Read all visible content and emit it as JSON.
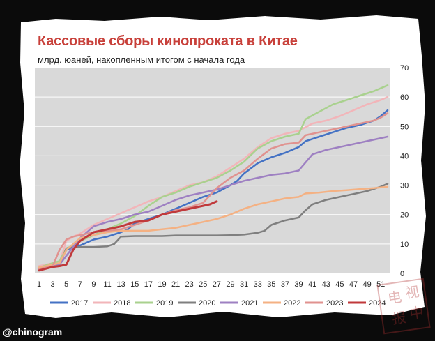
{
  "title": "Кассовые сборы кинопроката в Китае",
  "subtitle": "млрд. юаней, накопленным итогом с начала года",
  "watermark": "@chinogram",
  "seal_text": "电 视 报 中",
  "chart_data": {
    "type": "line",
    "title": "Кассовые сборы кинопроката в Китае",
    "subtitle": "млрд. юаней, накопленным итогом с начала года",
    "xlabel": "",
    "ylabel": "",
    "x_range": [
      1,
      52
    ],
    "ylim": [
      0,
      70
    ],
    "y_ticks": [
      0,
      10,
      20,
      30,
      40,
      50,
      60,
      70
    ],
    "x_ticks": [
      1,
      3,
      5,
      7,
      9,
      11,
      13,
      15,
      17,
      19,
      21,
      23,
      25,
      27,
      29,
      31,
      33,
      35,
      37,
      39,
      41,
      43,
      45,
      47,
      49,
      51
    ],
    "y_axis_side": "right",
    "grid": "horizontal",
    "legend_position": "bottom",
    "series": [
      {
        "name": "2017",
        "color": "#4472c4",
        "points": [
          [
            1,
            1.5
          ],
          [
            3,
            3
          ],
          [
            4,
            3.5
          ],
          [
            5,
            8
          ],
          [
            6,
            9
          ],
          [
            7,
            9.5
          ],
          [
            8,
            10.5
          ],
          [
            9,
            11.5
          ],
          [
            11,
            12.5
          ],
          [
            13,
            14
          ],
          [
            14,
            15
          ],
          [
            15,
            17
          ],
          [
            17,
            18.5
          ],
          [
            19,
            20
          ],
          [
            21,
            22
          ],
          [
            23,
            24
          ],
          [
            25,
            26
          ],
          [
            27,
            27.5
          ],
          [
            29,
            30
          ],
          [
            30,
            31.5
          ],
          [
            31,
            34
          ],
          [
            33,
            37.5
          ],
          [
            35,
            39.5
          ],
          [
            37,
            41
          ],
          [
            39,
            43
          ],
          [
            40,
            45
          ],
          [
            42,
            46.5
          ],
          [
            44,
            48
          ],
          [
            46,
            49.5
          ],
          [
            48,
            50.5
          ],
          [
            50,
            52
          ],
          [
            51,
            53.5
          ],
          [
            52,
            55.5
          ]
        ]
      },
      {
        "name": "2018",
        "color": "#f2b5b9",
        "points": [
          [
            1,
            2.5
          ],
          [
            3,
            3.5
          ],
          [
            4,
            3.8
          ],
          [
            5,
            11
          ],
          [
            6,
            12.5
          ],
          [
            7,
            13.5
          ],
          [
            9,
            16.5
          ],
          [
            11,
            18.5
          ],
          [
            13,
            20.5
          ],
          [
            15,
            22.5
          ],
          [
            17,
            24.5
          ],
          [
            19,
            26
          ],
          [
            21,
            28
          ],
          [
            23,
            30
          ],
          [
            25,
            31
          ],
          [
            27,
            33
          ],
          [
            29,
            36
          ],
          [
            31,
            39
          ],
          [
            33,
            43
          ],
          [
            35,
            46
          ],
          [
            37,
            47.5
          ],
          [
            39,
            48.5
          ],
          [
            41,
            51
          ],
          [
            43,
            52
          ],
          [
            45,
            53.5
          ],
          [
            47,
            55.5
          ],
          [
            49,
            57.5
          ],
          [
            51,
            59
          ],
          [
            52,
            60
          ]
        ]
      },
      {
        "name": "2019",
        "color": "#a9d18e",
        "points": [
          [
            1,
            2
          ],
          [
            3,
            3.5
          ],
          [
            4,
            4.2
          ],
          [
            5,
            8.5
          ],
          [
            6,
            9.5
          ],
          [
            7,
            11
          ],
          [
            9,
            13
          ],
          [
            11,
            15
          ],
          [
            13,
            17
          ],
          [
            15,
            19.5
          ],
          [
            17,
            23
          ],
          [
            19,
            26
          ],
          [
            21,
            27.5
          ],
          [
            23,
            29.5
          ],
          [
            25,
            31
          ],
          [
            27,
            32.5
          ],
          [
            29,
            35
          ],
          [
            31,
            38
          ],
          [
            33,
            42.5
          ],
          [
            35,
            45
          ],
          [
            37,
            46.5
          ],
          [
            39,
            47.5
          ],
          [
            40,
            52.5
          ],
          [
            42,
            55
          ],
          [
            44,
            57.5
          ],
          [
            46,
            59
          ],
          [
            48,
            60.5
          ],
          [
            50,
            62
          ],
          [
            52,
            64
          ]
        ]
      },
      {
        "name": "2020",
        "color": "#7f7f7f",
        "points": [
          [
            1,
            1
          ],
          [
            3,
            2.5
          ],
          [
            4,
            2.8
          ],
          [
            5,
            8.5
          ],
          [
            6,
            9
          ],
          [
            7,
            9
          ],
          [
            9,
            9
          ],
          [
            11,
            9.2
          ],
          [
            12,
            10
          ],
          [
            13,
            12.5
          ],
          [
            15,
            12.7
          ],
          [
            17,
            12.7
          ],
          [
            19,
            12.7
          ],
          [
            21,
            12.9
          ],
          [
            23,
            12.9
          ],
          [
            25,
            12.9
          ],
          [
            27,
            12.9
          ],
          [
            29,
            13
          ],
          [
            31,
            13.2
          ],
          [
            33,
            13.8
          ],
          [
            34,
            14.5
          ],
          [
            35,
            16.5
          ],
          [
            37,
            18
          ],
          [
            39,
            19
          ],
          [
            40,
            21.5
          ],
          [
            41,
            23.5
          ],
          [
            43,
            25
          ],
          [
            45,
            26
          ],
          [
            47,
            27
          ],
          [
            49,
            28
          ],
          [
            51,
            29.5
          ],
          [
            52,
            30.5
          ]
        ]
      },
      {
        "name": "2021",
        "color": "#9e80c2",
        "points": [
          [
            1,
            1.5
          ],
          [
            3,
            2.5
          ],
          [
            4,
            3
          ],
          [
            5,
            6
          ],
          [
            6,
            9
          ],
          [
            7,
            12
          ],
          [
            9,
            16
          ],
          [
            11,
            17.5
          ],
          [
            13,
            18.5
          ],
          [
            15,
            20
          ],
          [
            17,
            21
          ],
          [
            19,
            23
          ],
          [
            21,
            25
          ],
          [
            23,
            26.5
          ],
          [
            25,
            27.5
          ],
          [
            27,
            28.5
          ],
          [
            29,
            30
          ],
          [
            31,
            31.5
          ],
          [
            33,
            32.5
          ],
          [
            35,
            33.5
          ],
          [
            37,
            34
          ],
          [
            39,
            35
          ],
          [
            41,
            40.5
          ],
          [
            43,
            42
          ],
          [
            45,
            43
          ],
          [
            47,
            44
          ],
          [
            49,
            45
          ],
          [
            51,
            46
          ],
          [
            52,
            46.5
          ]
        ]
      },
      {
        "name": "2022",
        "color": "#f4b183",
        "points": [
          [
            1,
            2
          ],
          [
            3,
            3
          ],
          [
            4,
            3.5
          ],
          [
            5,
            8
          ],
          [
            6,
            10
          ],
          [
            7,
            12
          ],
          [
            9,
            13
          ],
          [
            11,
            14
          ],
          [
            13,
            14.5
          ],
          [
            15,
            14.5
          ],
          [
            17,
            14.5
          ],
          [
            19,
            15
          ],
          [
            21,
            15.5
          ],
          [
            23,
            16.5
          ],
          [
            25,
            17.5
          ],
          [
            27,
            18.5
          ],
          [
            29,
            20
          ],
          [
            31,
            22
          ],
          [
            33,
            23.5
          ],
          [
            35,
            24.5
          ],
          [
            37,
            25.5
          ],
          [
            39,
            26
          ],
          [
            40,
            27.2
          ],
          [
            42,
            27.5
          ],
          [
            44,
            28
          ],
          [
            46,
            28.3
          ],
          [
            48,
            28.7
          ],
          [
            50,
            29
          ],
          [
            52,
            29.5
          ]
        ]
      },
      {
        "name": "2023",
        "color": "#e0928f",
        "points": [
          [
            1,
            1.5
          ],
          [
            3,
            2.5
          ],
          [
            4,
            8
          ],
          [
            5,
            11.5
          ],
          [
            6,
            12.5
          ],
          [
            7,
            13
          ],
          [
            9,
            14
          ],
          [
            11,
            14.5
          ],
          [
            13,
            15
          ],
          [
            15,
            16.5
          ],
          [
            17,
            18
          ],
          [
            19,
            20
          ],
          [
            21,
            21.5
          ],
          [
            23,
            22.5
          ],
          [
            25,
            24
          ],
          [
            27,
            29
          ],
          [
            29,
            32.5
          ],
          [
            31,
            35
          ],
          [
            33,
            39
          ],
          [
            35,
            42.5
          ],
          [
            37,
            44
          ],
          [
            39,
            44.5
          ],
          [
            40,
            47
          ],
          [
            42,
            48
          ],
          [
            44,
            49
          ],
          [
            46,
            50
          ],
          [
            48,
            51
          ],
          [
            50,
            52
          ],
          [
            51,
            53
          ],
          [
            52,
            54.5
          ]
        ]
      },
      {
        "name": "2024",
        "color": "#c0393b",
        "points": [
          [
            1,
            1
          ],
          [
            3,
            2.2
          ],
          [
            4,
            2.5
          ],
          [
            5,
            3
          ],
          [
            6,
            8
          ],
          [
            7,
            11
          ],
          [
            8,
            12.5
          ],
          [
            9,
            14
          ],
          [
            11,
            15
          ],
          [
            13,
            16
          ],
          [
            15,
            17.5
          ],
          [
            17,
            18
          ],
          [
            19,
            20
          ],
          [
            21,
            21
          ],
          [
            23,
            22
          ],
          [
            25,
            23
          ],
          [
            26,
            23.5
          ],
          [
            27,
            24.5
          ]
        ]
      }
    ]
  }
}
